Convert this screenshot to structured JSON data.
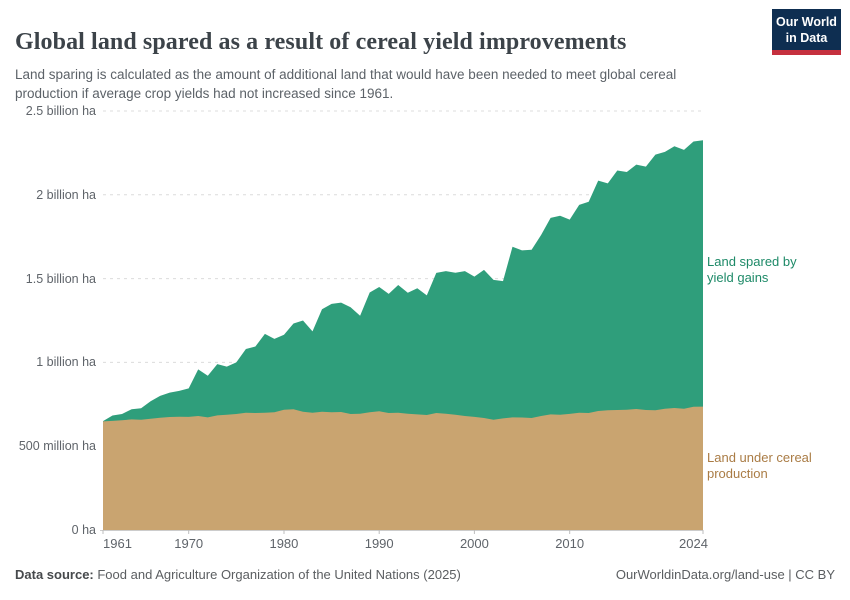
{
  "header": {
    "title": "Global land spared as a result of cereal yield improvements",
    "subtitle": "Land sparing is calculated as the amount of additional land that would have been needed to meet global cereal production if average crop yields had not increased since 1961."
  },
  "logo": {
    "line1": "Our World",
    "line2": "in Data"
  },
  "chart_data": {
    "type": "area",
    "stacked": true,
    "unit": "million hectares",
    "title": "Global land spared as a result of cereal yield improvements",
    "xlabel": "",
    "ylabel": "",
    "ylim": [
      0,
      2500
    ],
    "grid": "dashed-horizontal",
    "legend_position": "right-annotations",
    "x": [
      1961,
      1962,
      1963,
      1964,
      1965,
      1966,
      1967,
      1968,
      1969,
      1970,
      1971,
      1972,
      1973,
      1974,
      1975,
      1976,
      1977,
      1978,
      1979,
      1980,
      1981,
      1982,
      1983,
      1984,
      1985,
      1986,
      1987,
      1988,
      1989,
      1990,
      1991,
      1992,
      1993,
      1994,
      1995,
      1996,
      1997,
      1998,
      1999,
      2000,
      2001,
      2002,
      2003,
      2004,
      2005,
      2006,
      2007,
      2008,
      2009,
      2010,
      2011,
      2012,
      2013,
      2014,
      2015,
      2016,
      2017,
      2018,
      2019,
      2020,
      2021,
      2022,
      2023,
      2024
    ],
    "series": [
      {
        "name": "Land under cereal production",
        "color": "#c9a470",
        "label_color": "#aa7c45",
        "values": [
          648,
          651,
          655,
          660,
          658,
          664,
          670,
          674,
          676,
          675,
          680,
          672,
          684,
          688,
          692,
          700,
          698,
          700,
          702,
          717,
          720,
          706,
          700,
          706,
          702,
          704,
          692,
          694,
          702,
          708,
          698,
          700,
          694,
          690,
          686,
          698,
          694,
          688,
          680,
          675,
          668,
          658,
          666,
          672,
          671,
          668,
          680,
          690,
          688,
          693,
          700,
          698,
          710,
          714,
          716,
          718,
          722,
          716,
          714,
          724,
          728,
          724,
          735,
          736
        ]
      },
      {
        "name": "Land spared by yield gains",
        "color": "#2f9e7b",
        "label_color": "#1e8a68",
        "values": [
          2,
          32,
          37,
          60,
          68,
          104,
          130,
          146,
          154,
          170,
          278,
          248,
          306,
          287,
          308,
          380,
          397,
          470,
          438,
          448,
          512,
          544,
          485,
          611,
          647,
          653,
          637,
          584,
          715,
          742,
          711,
          762,
          721,
          753,
          714,
          836,
          851,
          847,
          865,
          837,
          884,
          834,
          819,
          1018,
          997,
          1004,
          1080,
          1172,
          1187,
          1159,
          1240,
          1260,
          1375,
          1354,
          1429,
          1418,
          1458,
          1452,
          1526,
          1532,
          1562,
          1544,
          1583,
          1589
        ]
      }
    ],
    "yticks": [
      {
        "value": 0,
        "label": "0 ha"
      },
      {
        "value": 500,
        "label": "500 million ha"
      },
      {
        "value": 1000,
        "label": "1 billion ha"
      },
      {
        "value": 1500,
        "label": "1.5 billion ha"
      },
      {
        "value": 2000,
        "label": "2 billion ha"
      },
      {
        "value": 2500,
        "label": "2.5 billion ha"
      }
    ],
    "xticks": [
      1961,
      1970,
      1980,
      1990,
      2000,
      2010,
      2024
    ]
  },
  "annotations": {
    "spared_label": "Land spared by\nyield gains",
    "cereal_label": "Land under cereal\nproduction"
  },
  "footer": {
    "source_label": "Data source:",
    "source_text": " Food and Agriculture Organization of the United Nations (2025)",
    "link_text": "OurWorldinData.org/land-use | CC BY"
  }
}
